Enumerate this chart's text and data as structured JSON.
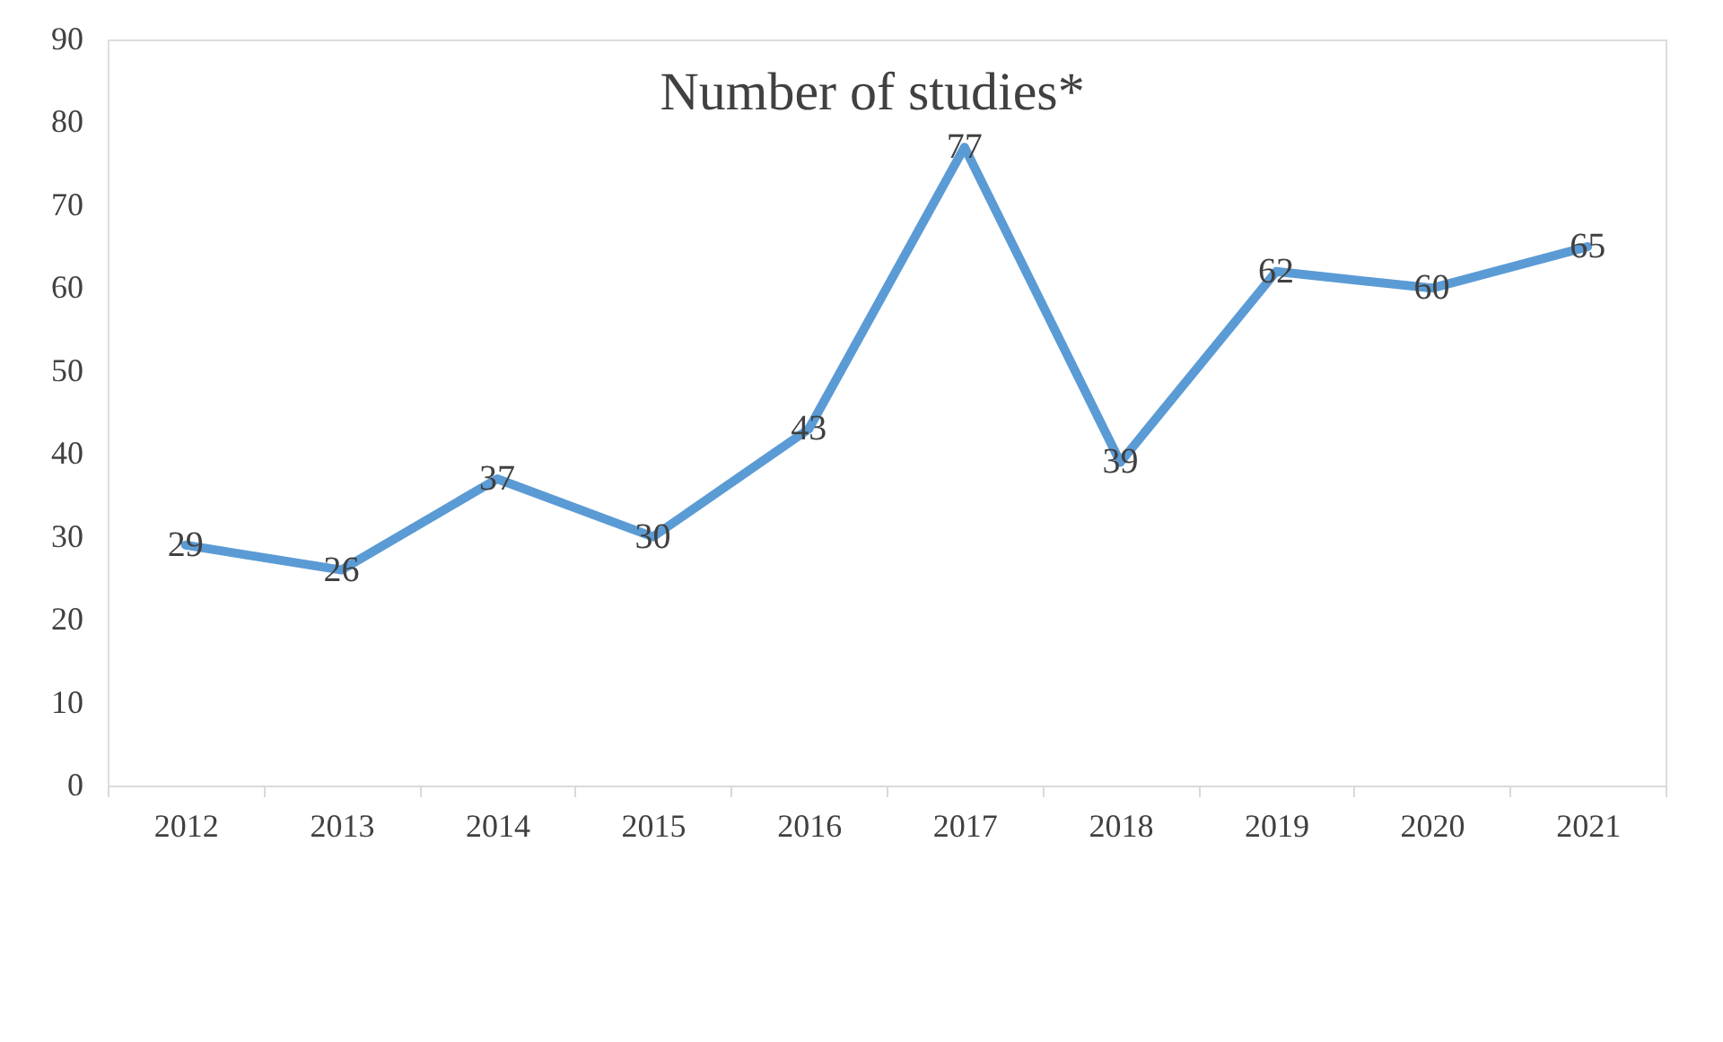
{
  "chart_data": {
    "type": "line",
    "title": "Number of studies*",
    "categories": [
      "2012",
      "2013",
      "2014",
      "2015",
      "2016",
      "2017",
      "2018",
      "2019",
      "2020",
      "2021"
    ],
    "series": [
      {
        "color": "#5b9bd5",
        "values": [
          29,
          26,
          37,
          30,
          43,
          77,
          39,
          62,
          60,
          65
        ]
      }
    ],
    "ylim": [
      0,
      90
    ],
    "yticks": [
      0,
      10,
      20,
      30,
      40,
      50,
      60,
      70,
      80,
      90
    ],
    "data_labels": true,
    "grid": false,
    "marker": "none",
    "line_style": "solid"
  }
}
